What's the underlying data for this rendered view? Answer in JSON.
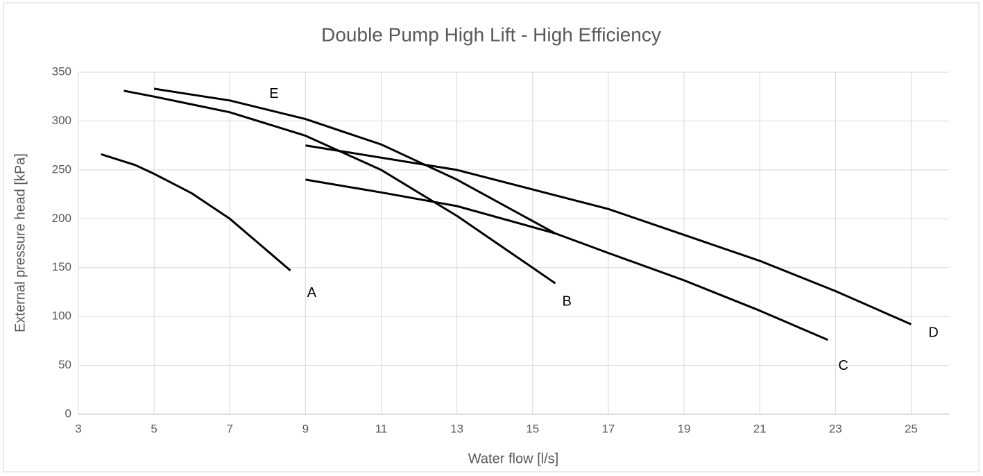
{
  "chart_data": {
    "type": "line",
    "title": "Double Pump High Lift - High Efficiency",
    "xlabel": "Water flow [l/s]",
    "ylabel": "External pressure head [kPa]",
    "xlim": [
      3,
      26
    ],
    "xticks": [
      3,
      5,
      7,
      9,
      11,
      13,
      15,
      17,
      19,
      21,
      23,
      25
    ],
    "ylim": [
      0,
      350
    ],
    "yticks": [
      0,
      50,
      100,
      150,
      200,
      250,
      300,
      350
    ],
    "grid": true,
    "series": [
      {
        "name": "A",
        "color": "#000000",
        "x": [
          3.6,
          4.5,
          5,
          6,
          7,
          8,
          8.6
        ],
        "values": [
          266,
          255,
          246,
          226,
          200,
          167,
          147
        ]
      },
      {
        "name": "B",
        "color": "#000000",
        "x": [
          4.2,
          5,
          7,
          9,
          11,
          13,
          15.6
        ],
        "values": [
          331,
          325,
          309,
          285,
          250,
          203,
          134
        ]
      },
      {
        "name": "C",
        "color": "#000000",
        "x": [
          9,
          11,
          13,
          15.6,
          17,
          19,
          21,
          22.8
        ],
        "values": [
          240,
          227,
          213,
          185,
          165,
          137,
          106,
          76
        ]
      },
      {
        "name": "D",
        "color": "#000000",
        "x": [
          9,
          13,
          17,
          21,
          23,
          25
        ],
        "values": [
          275,
          250,
          210,
          157,
          126,
          92
        ]
      },
      {
        "name": "E",
        "color": "#000000",
        "x": [
          5,
          7,
          9,
          11,
          13,
          15.6
        ],
        "values": [
          333,
          321,
          302,
          276,
          240,
          185
        ]
      }
    ]
  }
}
